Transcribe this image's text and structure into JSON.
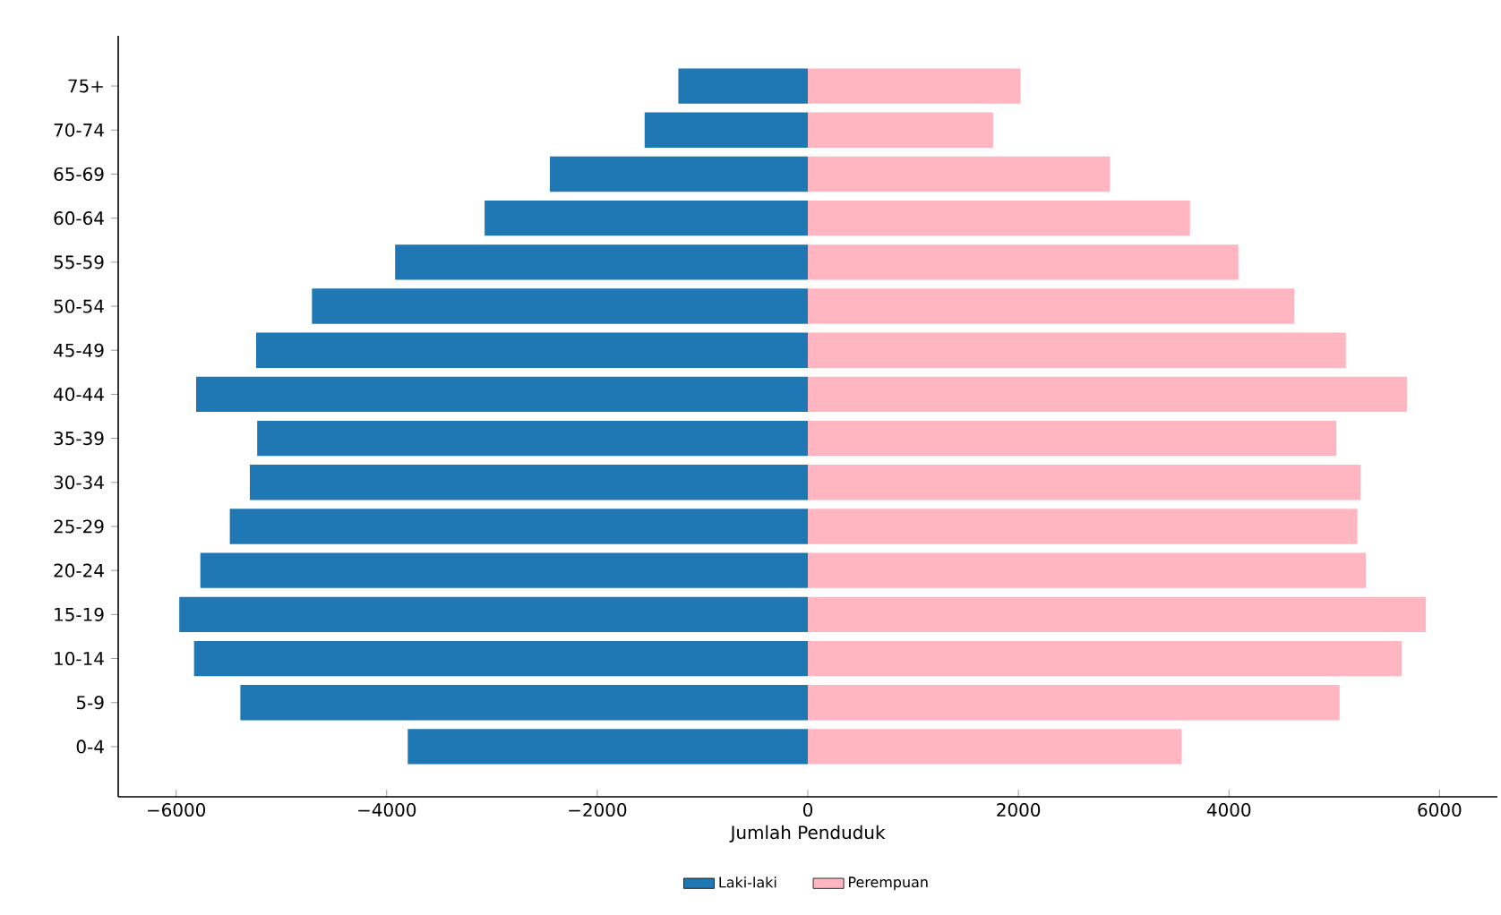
{
  "chart_data": {
    "type": "bar",
    "orientation": "horizontal",
    "xlabel": "Jumlah Penduduk",
    "categories": [
      "75+",
      "70-74",
      "65-69",
      "60-64",
      "55-59",
      "50-54",
      "45-49",
      "40-44",
      "35-39",
      "30-34",
      "25-29",
      "20-24",
      "15-19",
      "10-14",
      "5-9",
      "0-4"
    ],
    "series": [
      {
        "name": "Laki-laki",
        "color": "#1f77b4",
        "values": [
          -1230,
          -1550,
          -2450,
          -3070,
          -3920,
          -4710,
          -5240,
          -5810,
          -5230,
          -5300,
          -5490,
          -5770,
          -5970,
          -5830,
          -5390,
          -3800
        ]
      },
      {
        "name": "Perempuan",
        "color": "#ffb6c1",
        "values": [
          2020,
          1760,
          2870,
          3630,
          4090,
          4620,
          5110,
          5690,
          5020,
          5250,
          5220,
          5300,
          5870,
          5640,
          5050,
          3550
        ]
      }
    ],
    "xlim": [
      -6550,
      6550
    ],
    "xticks": [
      {
        "value": -6000,
        "label": "−6000"
      },
      {
        "value": -4000,
        "label": "−4000"
      },
      {
        "value": -2000,
        "label": "−2000"
      },
      0,
      2000,
      4000,
      6000
    ],
    "stacked": true,
    "legend": "bottom",
    "grid": false
  }
}
